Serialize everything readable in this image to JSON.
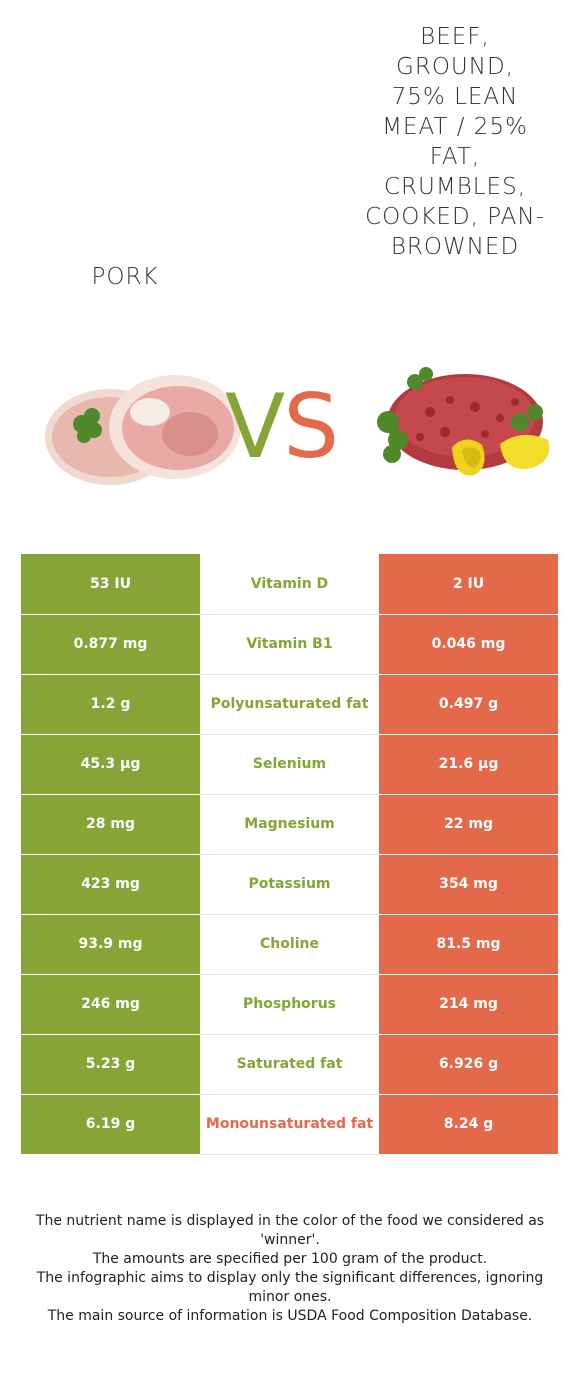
{
  "left_food": {
    "name": "Pork",
    "color": "#86a536"
  },
  "right_food": {
    "name": "Beef, ground, 75% lean meat / 25% fat, crumbles, cooked, pan-browned",
    "color": "#e4694a"
  },
  "vs": {
    "v": "V",
    "s": "S"
  },
  "rows": [
    {
      "left": "53 IU",
      "nutrient": "Vitamin D",
      "right": "2 IU",
      "winner": "left"
    },
    {
      "left": "0.877 mg",
      "nutrient": "Vitamin B1",
      "right": "0.046 mg",
      "winner": "left"
    },
    {
      "left": "1.2 g",
      "nutrient": "Polyunsaturated fat",
      "right": "0.497 g",
      "winner": "left"
    },
    {
      "left": "45.3 µg",
      "nutrient": "Selenium",
      "right": "21.6 µg",
      "winner": "left"
    },
    {
      "left": "28 mg",
      "nutrient": "Magnesium",
      "right": "22 mg",
      "winner": "left"
    },
    {
      "left": "423 mg",
      "nutrient": "Potassium",
      "right": "354 mg",
      "winner": "left"
    },
    {
      "left": "93.9 mg",
      "nutrient": "Choline",
      "right": "81.5 mg",
      "winner": "left"
    },
    {
      "left": "246 mg",
      "nutrient": "Phosphorus",
      "right": "214 mg",
      "winner": "left"
    },
    {
      "left": "5.23 g",
      "nutrient": "Saturated fat",
      "right": "6.926 g",
      "winner": "left"
    },
    {
      "left": "6.19 g",
      "nutrient": "Monounsaturated fat",
      "right": "8.24 g",
      "winner": "right"
    }
  ],
  "footer": {
    "line1": "The nutrient name is displayed in the color of the food we considered as 'winner'.",
    "line2": "The amounts are specified per 100 gram of the product.",
    "line3": "The infographic aims to display only the significant differences, ignoring minor ones.",
    "line4": "The main source of information is USDA Food Composition Database."
  }
}
